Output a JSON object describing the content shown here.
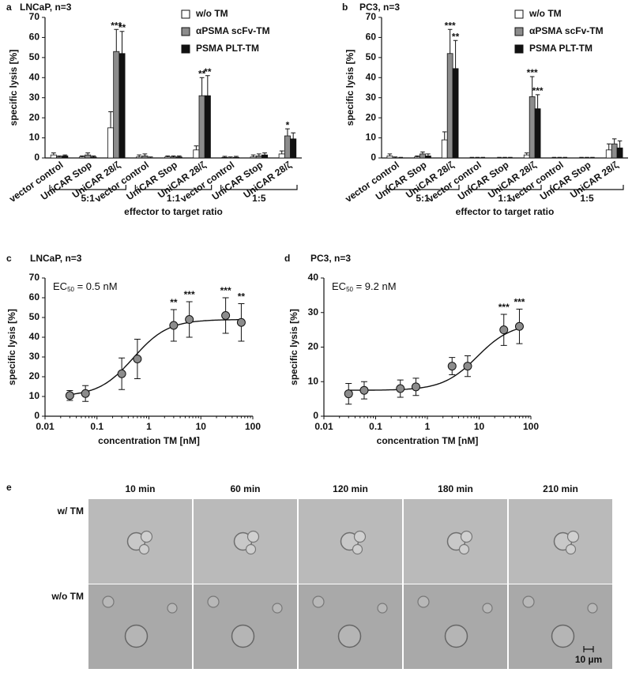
{
  "chart_data": [
    {
      "type": "grouped_bar",
      "panel_label": "a",
      "title": "LNCaP, n=3",
      "ylabel": "specific lysis [%]",
      "xlabel": "effector to target ratio",
      "categories": [
        "vector control",
        "UniCAR Stop",
        "UniCAR 28/ζ",
        "vector control",
        "UniCAR Stop",
        "UniCAR 28/ζ",
        "vector control",
        "UniCAR Stop",
        "UniCAR 28/ζ"
      ],
      "groups": [
        "5:1",
        "1:1",
        "1:5"
      ],
      "series": [
        {
          "name": "w/o TM",
          "color": "#ffffff",
          "values": [
            1.5,
            0.5,
            15,
            0.5,
            0.5,
            4,
            0.3,
            0.5,
            2
          ],
          "errors": [
            1,
            0.5,
            8,
            1,
            0.5,
            2,
            0.5,
            1,
            1.5
          ]
        },
        {
          "name": "αPSMA scFv-TM",
          "color": "#8c8c8c",
          "values": [
            0.5,
            1.5,
            53,
            1,
            0.5,
            31,
            0,
            1,
            11
          ],
          "errors": [
            0.5,
            1,
            11,
            1,
            0.5,
            9,
            0.5,
            1,
            3.5
          ]
        },
        {
          "name": "PSMA PLT-TM",
          "color": "#111111",
          "values": [
            1,
            0.5,
            52,
            0,
            0.5,
            31,
            0.3,
            1.5,
            9.5
          ],
          "errors": [
            0.5,
            0.5,
            11,
            0.5,
            0.5,
            10,
            0.5,
            1,
            3
          ]
        }
      ],
      "annotations": [
        {
          "series": 1,
          "index": 2,
          "text": "***"
        },
        {
          "series": 2,
          "index": 2,
          "text": "**"
        },
        {
          "series": 1,
          "index": 5,
          "text": "**"
        },
        {
          "series": 2,
          "index": 5,
          "text": "**"
        },
        {
          "series": 1,
          "index": 8,
          "text": "*"
        }
      ],
      "ylim": [
        0,
        70
      ],
      "yticks": [
        0,
        10,
        20,
        30,
        40,
        50,
        60,
        70
      ],
      "legend": "upper right"
    },
    {
      "type": "grouped_bar",
      "panel_label": "b",
      "title": "PC3, n=3",
      "ylabel": "specific lysis [%]",
      "xlabel": "effector to target ratio",
      "categories": [
        "vector control",
        "UniCAR Stop",
        "UniCAR 28/ζ",
        "vector control",
        "UniCAR Stop",
        "UniCAR 28/ζ",
        "vector control",
        "UniCAR Stop",
        "UniCAR 28/ζ"
      ],
      "groups": [
        "5:1",
        "1:1",
        "1:5"
      ],
      "series": [
        {
          "name": "w/o TM",
          "color": "#ffffff",
          "values": [
            1,
            0.5,
            9,
            0,
            0,
            1.5,
            0,
            0,
            4
          ],
          "errors": [
            1,
            0.5,
            4,
            0.3,
            0.3,
            1,
            0.3,
            0.3,
            3
          ]
        },
        {
          "name": "αPSMA scFv-TM",
          "color": "#8c8c8c",
          "values": [
            0,
            2,
            52,
            0,
            0,
            30.5,
            0,
            0,
            7
          ],
          "errors": [
            0.5,
            1,
            12,
            0.3,
            0.3,
            10,
            0.3,
            0.3,
            2.5
          ]
        },
        {
          "name": "PSMA PLT-TM",
          "color": "#111111",
          "values": [
            0,
            1,
            44.5,
            0,
            0,
            24.5,
            0,
            0,
            5
          ],
          "errors": [
            0.3,
            1,
            14,
            0.3,
            0.3,
            7,
            0.3,
            0.3,
            3.5
          ]
        }
      ],
      "annotations": [
        {
          "series": 1,
          "index": 2,
          "text": "***"
        },
        {
          "series": 2,
          "index": 2,
          "text": "**"
        },
        {
          "series": 1,
          "index": 5,
          "text": "***"
        },
        {
          "series": 2,
          "index": 5,
          "text": "***"
        }
      ],
      "ylim": [
        0,
        70
      ],
      "yticks": [
        0,
        10,
        20,
        30,
        40,
        50,
        60,
        70
      ],
      "legend": "upper right"
    },
    {
      "type": "scatter",
      "panel_label": "c",
      "title": "LNCaP, n=3",
      "ylabel": "specific lysis [%]",
      "xlabel": "concentration TM [nM]",
      "ec50_label": {
        "prefix": "EC",
        "sub": "50",
        "text": " = 0.5 nM"
      },
      "x": [
        0.03,
        0.06,
        0.3,
        0.6,
        3,
        6,
        30,
        60
      ],
      "values": [
        10.5,
        11.5,
        21.5,
        29,
        46,
        49,
        51,
        47.5
      ],
      "errors": [
        2.5,
        4,
        8,
        10,
        8,
        9,
        9,
        9.5
      ],
      "color": "#8c8c8c",
      "fit": {
        "ec50": 0.5,
        "bottom": 10,
        "top": 49,
        "hill": 1.3
      },
      "annotations": [
        {
          "index": 4,
          "text": "**"
        },
        {
          "index": 5,
          "text": "***"
        },
        {
          "index": 6,
          "text": "***"
        },
        {
          "index": 7,
          "text": "**"
        }
      ],
      "log_x": true,
      "xlim": [
        0.01,
        100
      ],
      "xticks": [
        0.01,
        0.1,
        1,
        10,
        100
      ],
      "ylim": [
        0,
        70
      ],
      "yticks": [
        0,
        10,
        20,
        30,
        40,
        50,
        60,
        70
      ]
    },
    {
      "type": "scatter",
      "panel_label": "d",
      "title": "PC3, n=3",
      "ylabel": "specific lysis [%]",
      "xlabel": "concentration TM [nM]",
      "ec50_label": {
        "prefix": "EC",
        "sub": "50",
        "text": " = 9.2 nM"
      },
      "x": [
        0.03,
        0.06,
        0.3,
        0.6,
        3,
        6,
        30,
        60
      ],
      "values": [
        6.5,
        7.5,
        8,
        8.5,
        14.5,
        14.5,
        25,
        26
      ],
      "errors": [
        3,
        2.5,
        2.5,
        2.5,
        2.5,
        3,
        4.5,
        5
      ],
      "color": "#8c8c8c",
      "fit": {
        "ec50": 9.2,
        "bottom": 7.5,
        "top": 27,
        "hill": 1.3
      },
      "annotations": [
        {
          "index": 6,
          "text": "***"
        },
        {
          "index": 7,
          "text": "***"
        }
      ],
      "log_x": true,
      "xlim": [
        0.01,
        100
      ],
      "xticks": [
        0.01,
        0.1,
        1,
        10,
        100
      ],
      "ylim": [
        0,
        40
      ],
      "yticks": [
        0,
        10,
        20,
        30,
        40
      ]
    }
  ],
  "image_panel": {
    "panel_label": "e",
    "columns": [
      "10 min",
      "60 min",
      "120 min",
      "180 min",
      "210 min"
    ],
    "rows": [
      "w/ TM",
      "w/o TM"
    ],
    "scale_bar": "10 µm"
  }
}
